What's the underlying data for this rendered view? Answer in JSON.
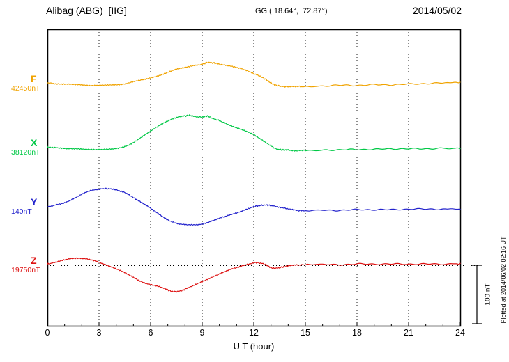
{
  "header": {
    "station": "Alibag (ABG)  [IIG]",
    "coords": "GG ( 18.64°,  72.87°)",
    "date": "2014/05/02"
  },
  "footer": {
    "plotted_note": "Plotted at 2014/06/02 02:16 UT"
  },
  "chart_data": {
    "type": "line",
    "title": "Alibag (ABG) [IIG] magnetogram 2014/05/02",
    "xlabel": "U T (hour)",
    "x_range": [
      0,
      24
    ],
    "x_ticks": [
      0,
      3,
      6,
      9,
      12,
      15,
      18,
      21,
      24
    ],
    "grid": "dotted vertical gridlines at 3h intervals, dotted horizontal baseline per component",
    "legend_position": "left",
    "scale_bar": {
      "label": "100 nT",
      "nT": 100
    },
    "series": [
      {
        "name": "F",
        "color": "#f0a300",
        "baseline_label": "42450nT",
        "baseline_nT": 42450,
        "offsets_unit": "nT relative to baseline",
        "points": [
          [
            0,
            1
          ],
          [
            0.5,
            0
          ],
          [
            1,
            -1
          ],
          [
            1.5,
            -2
          ],
          [
            2,
            -2
          ],
          [
            2.5,
            -3
          ],
          [
            3,
            -3
          ],
          [
            3.5,
            -3
          ],
          [
            4,
            -2
          ],
          [
            4.5,
            0
          ],
          [
            5,
            3
          ],
          [
            5.5,
            6
          ],
          [
            6,
            10
          ],
          [
            6.5,
            14
          ],
          [
            7,
            19
          ],
          [
            7.5,
            24
          ],
          [
            8,
            28
          ],
          [
            8.5,
            31
          ],
          [
            9,
            33
          ],
          [
            9.3,
            36
          ],
          [
            9.7,
            35
          ],
          [
            10,
            33
          ],
          [
            10.5,
            31
          ],
          [
            11,
            27
          ],
          [
            11.5,
            23
          ],
          [
            12,
            17
          ],
          [
            12.4,
            12
          ],
          [
            12.7,
            7
          ],
          [
            13,
            1
          ],
          [
            13.3,
            -3
          ],
          [
            13.7,
            -5
          ],
          [
            14,
            -5
          ],
          [
            14.5,
            -5
          ],
          [
            15,
            -5
          ],
          [
            16,
            -4
          ],
          [
            17,
            -3
          ],
          [
            18,
            -3
          ],
          [
            19,
            -2
          ],
          [
            20,
            -2
          ],
          [
            21,
            -1
          ],
          [
            22,
            0
          ],
          [
            23,
            1
          ],
          [
            24,
            2
          ]
        ]
      },
      {
        "name": "X",
        "color": "#00c846",
        "baseline_label": "38120nT",
        "baseline_nT": 38120,
        "offsets_unit": "nT relative to baseline",
        "points": [
          [
            0,
            1
          ],
          [
            0.5,
            0
          ],
          [
            1,
            -1
          ],
          [
            1.5,
            -2
          ],
          [
            2,
            -3
          ],
          [
            2.5,
            -3
          ],
          [
            3,
            -3
          ],
          [
            3.5,
            -3
          ],
          [
            4,
            -2
          ],
          [
            4.5,
            2
          ],
          [
            5,
            9
          ],
          [
            5.5,
            18
          ],
          [
            6,
            28
          ],
          [
            6.5,
            38
          ],
          [
            7,
            46
          ],
          [
            7.5,
            51
          ],
          [
            8,
            54
          ],
          [
            8.3,
            55
          ],
          [
            8.6,
            53
          ],
          [
            9,
            52
          ],
          [
            9.3,
            54
          ],
          [
            9.6,
            50
          ],
          [
            10,
            46
          ],
          [
            10.5,
            40
          ],
          [
            11,
            34
          ],
          [
            11.5,
            28
          ],
          [
            12,
            22
          ],
          [
            12.5,
            13
          ],
          [
            13,
            3
          ],
          [
            13.3,
            -2
          ],
          [
            13.7,
            -4
          ],
          [
            14,
            -4
          ],
          [
            14.5,
            -5
          ],
          [
            15,
            -5
          ],
          [
            16,
            -4
          ],
          [
            17,
            -4
          ],
          [
            18,
            -3
          ],
          [
            19,
            -3
          ],
          [
            20,
            -2
          ],
          [
            21,
            -2
          ],
          [
            22,
            -2
          ],
          [
            23,
            -1
          ],
          [
            24,
            -1
          ]
        ]
      },
      {
        "name": "Y",
        "color": "#2222cc",
        "baseline_label": "140nT",
        "baseline_nT": 140,
        "offsets_unit": "nT relative to baseline",
        "points": [
          [
            0,
            0
          ],
          [
            0.5,
            3
          ],
          [
            1,
            7
          ],
          [
            1.5,
            14
          ],
          [
            2,
            21
          ],
          [
            2.5,
            27
          ],
          [
            3,
            30
          ],
          [
            3.4,
            31
          ],
          [
            3.8,
            30
          ],
          [
            4,
            29
          ],
          [
            4.5,
            24
          ],
          [
            5,
            16
          ],
          [
            5.5,
            7
          ],
          [
            6,
            -3
          ],
          [
            6.5,
            -13
          ],
          [
            7,
            -22
          ],
          [
            7.5,
            -28
          ],
          [
            8,
            -31
          ],
          [
            8.5,
            -31
          ],
          [
            9,
            -29
          ],
          [
            9.5,
            -25
          ],
          [
            10,
            -20
          ],
          [
            10.5,
            -15
          ],
          [
            11,
            -10
          ],
          [
            11.5,
            -5
          ],
          [
            12,
            0
          ],
          [
            12.3,
            2
          ],
          [
            12.7,
            3
          ],
          [
            13,
            2
          ],
          [
            13.5,
            -1
          ],
          [
            14,
            -4
          ],
          [
            14.5,
            -6
          ],
          [
            15,
            -7
          ],
          [
            16,
            -6
          ],
          [
            17,
            -6
          ],
          [
            18,
            -5
          ],
          [
            19,
            -5
          ],
          [
            20,
            -5
          ],
          [
            21,
            -4
          ],
          [
            22,
            -4
          ],
          [
            23,
            -4
          ],
          [
            24,
            -4
          ]
        ]
      },
      {
        "name": "Z",
        "color": "#dd1111",
        "baseline_label": "19750nT",
        "baseline_nT": 19750,
        "offsets_unit": "nT relative to baseline",
        "points": [
          [
            0,
            2
          ],
          [
            0.5,
            5
          ],
          [
            1,
            9
          ],
          [
            1.5,
            12
          ],
          [
            2,
            12
          ],
          [
            2.5,
            9
          ],
          [
            3,
            5
          ],
          [
            3.5,
            0
          ],
          [
            4,
            -6
          ],
          [
            4.5,
            -13
          ],
          [
            5,
            -21
          ],
          [
            5.5,
            -28
          ],
          [
            6,
            -33
          ],
          [
            6.5,
            -37
          ],
          [
            7,
            -42
          ],
          [
            7.3,
            -45
          ],
          [
            7.7,
            -44
          ],
          [
            8,
            -41
          ],
          [
            8.5,
            -35
          ],
          [
            9,
            -28
          ],
          [
            9.5,
            -21
          ],
          [
            10,
            -15
          ],
          [
            10.5,
            -9
          ],
          [
            11,
            -4
          ],
          [
            11.5,
            1
          ],
          [
            12,
            4
          ],
          [
            12.3,
            4
          ],
          [
            12.7,
            1
          ],
          [
            13,
            -4
          ],
          [
            13.3,
            -5
          ],
          [
            13.7,
            -3
          ],
          [
            14,
            -1
          ],
          [
            14.5,
            0
          ],
          [
            15,
            1
          ],
          [
            16,
            1
          ],
          [
            17,
            1
          ],
          [
            18,
            2
          ],
          [
            19,
            2
          ],
          [
            20,
            2
          ],
          [
            21,
            2
          ],
          [
            22,
            2
          ],
          [
            23,
            2
          ],
          [
            24,
            2
          ]
        ]
      }
    ]
  }
}
